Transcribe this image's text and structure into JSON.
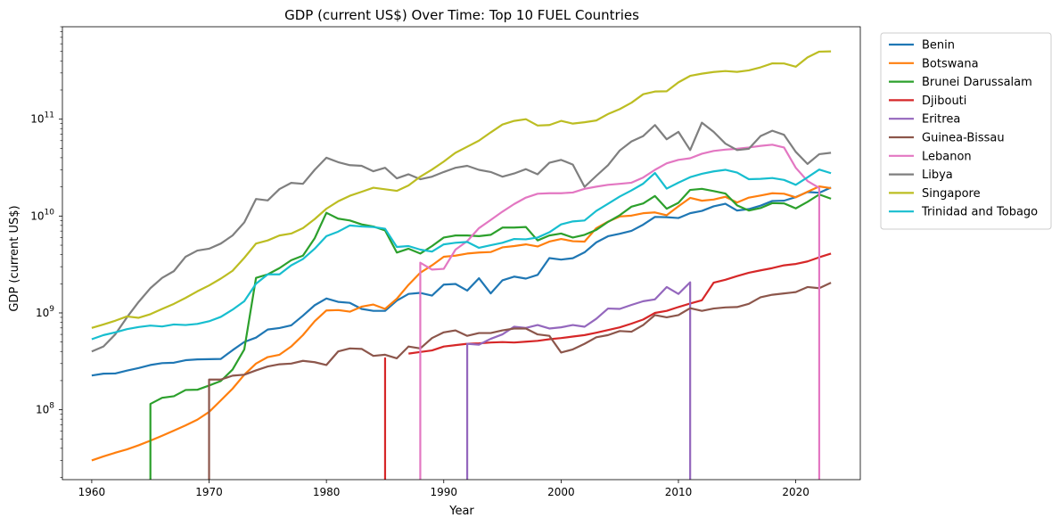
{
  "chart_data": {
    "type": "line",
    "title": "GDP (current US$) Over Time: Top 10 FUEL Countries",
    "xlabel": "Year",
    "ylabel": "GDP (current US$)",
    "yscale": "log",
    "xlim": [
      1957.5,
      2025.5
    ],
    "ylim": [
      19000000,
      900000000000
    ],
    "xticks": [
      1960,
      1970,
      1980,
      1990,
      2000,
      2010,
      2020
    ],
    "yticks": [
      {
        "value": 100000000,
        "base": "10",
        "exp": "8"
      },
      {
        "value": 1000000000,
        "base": "10",
        "exp": "9"
      },
      {
        "value": 10000000000,
        "base": "10",
        "exp": "10"
      },
      {
        "value": 100000000000,
        "base": "10",
        "exp": "11"
      }
    ],
    "grid": false,
    "legend_position": "outside-top-right",
    "series": [
      {
        "name": "Benin",
        "color": "#1f77b4",
        "x_start": 1960,
        "values": [
          226000000.0,
          236000000.0,
          237000000.0,
          254000000.0,
          270000000.0,
          290000000.0,
          303000000.0,
          306000000.0,
          325000000.0,
          331000000.0,
          333000000.0,
          335000000.0,
          412000000.0,
          501000000.0,
          556000000.0,
          674000000.0,
          698000000.0,
          744000000.0,
          937000000.0,
          1200000000.0,
          1410000000.0,
          1300000000.0,
          1270000000.0,
          1100000000.0,
          1050000000.0,
          1050000000.0,
          1340000000.0,
          1570000000.0,
          1610000000.0,
          1510000000.0,
          1960000000.0,
          1990000000.0,
          1700000000.0,
          2280000000.0,
          1590000000.0,
          2170000000.0,
          2370000000.0,
          2260000000.0,
          2470000000.0,
          3680000000.0,
          3550000000.0,
          3670000000.0,
          4220000000.0,
          5350000000.0,
          6190000000.0,
          6570000000.0,
          7030000000.0,
          8150000000.0,
          9790000000.0,
          9730000000.0,
          9540000000.0,
          10700000000.0,
          11300000000.0,
          12600000000.0,
          13400000000.0,
          11400000000.0,
          11800000000.0,
          12800000000.0,
          14300000000.0,
          14400000000.0,
          15700000000.0,
          17700000000.0,
          17400000000.0,
          19700000000.0
        ]
      },
      {
        "name": "Botswana",
        "color": "#ff7f0e",
        "x_start": 1960,
        "values": [
          30000000.0,
          33000000.0,
          36000000.0,
          39000000.0,
          43000000.0,
          48000000.0,
          54000000.0,
          61000000.0,
          69000000.0,
          79000000.0,
          95000000.0,
          125000000.0,
          165000000.0,
          230000000.0,
          300000000.0,
          350000000.0,
          370000000.0,
          450000000.0,
          590000000.0,
          820000000.0,
          1060000000.0,
          1070000000.0,
          1030000000.0,
          1160000000.0,
          1220000000.0,
          1100000000.0,
          1400000000.0,
          1950000000.0,
          2600000000.0,
          3100000000.0,
          3800000000.0,
          3900000000.0,
          4100000000.0,
          4200000000.0,
          4250000000.0,
          4750000000.0,
          4900000000.0,
          5100000000.0,
          4850000000.0,
          5450000000.0,
          5800000000.0,
          5500000000.0,
          5450000000.0,
          7500000000.0,
          8750000000.0,
          9900000000.0,
          10100000000.0,
          10700000000.0,
          10900000000.0,
          10200000000.0,
          12600000000.0,
          15400000000.0,
          14400000000.0,
          14800000000.0,
          15800000000.0,
          13800000000.0,
          15500000000.0,
          16300000000.0,
          17200000000.0,
          17000000000.0,
          15600000000.0,
          17800000000.0,
          20200000000.0,
          19400000000.0
        ]
      },
      {
        "name": "Brunei Darussalam",
        "color": "#2ca02c",
        "x_start": 1965,
        "drop_from": 1965,
        "values": [
          115000000.0,
          133000000.0,
          138000000.0,
          160000000.0,
          161000000.0,
          178000000.0,
          198000000.0,
          260000000.0,
          420000000.0,
          2300000000.0,
          2500000000.0,
          2900000000.0,
          3500000000.0,
          3900000000.0,
          5900000000.0,
          10800000000.0,
          9400000000.0,
          9000000000.0,
          8200000000.0,
          7800000000.0,
          7100000000.0,
          4200000000.0,
          4600000000.0,
          4100000000.0,
          4900000000.0,
          6000000000.0,
          6300000000.0,
          6300000000.0,
          6200000000.0,
          6400000000.0,
          7600000000.0,
          7600000000.0,
          7700000000.0,
          5600000000.0,
          6300000000.0,
          6600000000.0,
          6000000000.0,
          6400000000.0,
          7200000000.0,
          8700000000.0,
          10200000000.0,
          12500000000.0,
          13500000000.0,
          16100000000.0,
          11900000000.0,
          13700000000.0,
          18600000000.0,
          19100000000.0,
          18100000000.0,
          17100000000.0,
          12900000000.0,
          11400000000.0,
          12100000000.0,
          13600000000.0,
          13500000000.0,
          12000000000.0,
          14000000000.0,
          16700000000.0,
          15100000000.0
        ]
      },
      {
        "name": "Djibouti",
        "color": "#d62728",
        "x_start": 1985,
        "drop_from": 1985,
        "gap_after": 1985,
        "values": [
          340000000.0,
          null,
          380000000.0,
          395000000.0,
          410000000.0,
          450000000.0,
          465000000.0,
          480000000.0,
          485000000.0,
          495000000.0,
          500000000.0,
          495000000.0,
          505000000.0,
          515000000.0,
          535000000.0,
          550000000.0,
          570000000.0,
          590000000.0,
          625000000.0,
          665000000.0,
          710000000.0,
          775000000.0,
          855000000.0,
          1000000000.0,
          1050000000.0,
          1150000000.0,
          1250000000.0,
          1350000000.0,
          2050000000.0,
          2200000000.0,
          2400000000.0,
          2600000000.0,
          2750000000.0,
          2900000000.0,
          3100000000.0,
          3200000000.0,
          3400000000.0,
          3750000000.0,
          4100000000.0
        ]
      },
      {
        "name": "Eritrea",
        "color": "#9467bd",
        "x_start": 1992,
        "drop_from": 1992,
        "drop_after": true,
        "values": [
          480000000.0,
          470000000.0,
          540000000.0,
          600000000.0,
          720000000.0,
          700000000.0,
          750000000.0,
          690000000.0,
          710000000.0,
          750000000.0,
          720000000.0,
          870000000.0,
          1110000000.0,
          1100000000.0,
          1210000000.0,
          1320000000.0,
          1380000000.0,
          1850000000.0,
          1570000000.0,
          2070000000.0
        ]
      },
      {
        "name": "Guinea-Bissau",
        "color": "#8c564b",
        "x_start": 1970,
        "drop_from": 1970,
        "values": [
          205000000.0,
          205000000.0,
          225000000.0,
          230000000.0,
          255000000.0,
          280000000.0,
          295000000.0,
          300000000.0,
          320000000.0,
          310000000.0,
          290000000.0,
          400000000.0,
          430000000.0,
          425000000.0,
          360000000.0,
          370000000.0,
          340000000.0,
          450000000.0,
          430000000.0,
          550000000.0,
          630000000.0,
          660000000.0,
          580000000.0,
          620000000.0,
          620000000.0,
          660000000.0,
          690000000.0,
          690000000.0,
          600000000.0,
          580000000.0,
          390000000.0,
          420000000.0,
          480000000.0,
          560000000.0,
          590000000.0,
          650000000.0,
          640000000.0,
          750000000.0,
          950000000.0,
          900000000.0,
          950000000.0,
          1120000000.0,
          1050000000.0,
          1110000000.0,
          1140000000.0,
          1150000000.0,
          1240000000.0,
          1450000000.0,
          1540000000.0,
          1590000000.0,
          1640000000.0,
          1850000000.0,
          1800000000.0,
          2050000000.0
        ]
      },
      {
        "name": "Lebanon",
        "color": "#e377c2",
        "x_start": 1988,
        "drop_from": 1988,
        "drop_after": true,
        "values": [
          3300000000.0,
          2800000000.0,
          2850000000.0,
          4500000000.0,
          5500000000.0,
          7500000000.0,
          9100000000.0,
          11100000000.0,
          13300000000.0,
          15500000000.0,
          17000000000.0,
          17200000000.0,
          17200000000.0,
          17500000000.0,
          19100000000.0,
          20100000000.0,
          21000000000.0,
          21500000000.0,
          22100000000.0,
          25000000000.0,
          30000000000.0,
          35000000000.0,
          38000000000.0,
          39500000000.0,
          44000000000.0,
          47000000000.0,
          48500000000.0,
          49500000000.0,
          51000000000.0,
          53000000000.0,
          54500000000.0,
          51000000000.0,
          31500000000.0,
          23000000000.0,
          19500000000.0
        ]
      },
      {
        "name": "Libya",
        "color": "#7f7f7f",
        "x_start": 1960,
        "values": [
          400000000.0,
          450000000.0,
          600000000.0,
          900000000.0,
          1300000000.0,
          1800000000.0,
          2300000000.0,
          2700000000.0,
          3800000000.0,
          4400000000.0,
          4600000000.0,
          5200000000.0,
          6300000000.0,
          8600000000.0,
          15000000000.0,
          14500000000.0,
          19000000000.0,
          22000000000.0,
          21500000000.0,
          30000000000.0,
          40000000000.0,
          36000000000.0,
          33500000000.0,
          33000000000.0,
          29000000000.0,
          31500000000.0,
          24500000000.0,
          27000000000.0,
          24000000000.0,
          25500000000.0,
          28500000000.0,
          31500000000.0,
          33000000000.0,
          30000000000.0,
          28500000000.0,
          25500000000.0,
          27500000000.0,
          30500000000.0,
          27000000000.0,
          35500000000.0,
          38000000000.0,
          34000000000.0,
          20000000000.0,
          26000000000.0,
          33500000000.0,
          47500000000.0,
          59000000000.0,
          67000000000.0,
          87000000000.0,
          62000000000.0,
          74000000000.0,
          48000000000.0,
          92000000000.0,
          74000000000.0,
          56000000000.0,
          48000000000.0,
          49500000000.0,
          67000000000.0,
          76000000000.0,
          69000000000.0,
          46000000000.0,
          34500000000.0,
          43500000000.0,
          45000000000.0
        ]
      },
      {
        "name": "Singapore",
        "color": "#bcbd22",
        "x_start": 1960,
        "values": [
          700000000.0,
          760000000.0,
          830000000.0,
          920000000.0,
          890000000.0,
          970000000.0,
          1100000000.0,
          1240000000.0,
          1430000000.0,
          1670000000.0,
          1920000000.0,
          2260000000.0,
          2720000000.0,
          3700000000.0,
          5200000000.0,
          5600000000.0,
          6300000000.0,
          6600000000.0,
          7500000000.0,
          9300000000.0,
          11900000000.0,
          14200000000.0,
          16200000000.0,
          17800000000.0,
          19600000000.0,
          18900000000.0,
          18200000000.0,
          20700000000.0,
          25500000000.0,
          30200000000.0,
          36500000000.0,
          45000000000.0,
          52000000000.0,
          60000000000.0,
          73000000000.0,
          88000000000.0,
          96000000000.0,
          100000000000.0,
          86000000000.0,
          87000000000.0,
          96000000000.0,
          90000000000.0,
          93000000000.0,
          97000000000.0,
          113000000000.0,
          127000000000.0,
          148000000000.0,
          181000000000.0,
          193000000000.0,
          194000000000.0,
          240000000000.0,
          280000000000.0,
          295000000000.0,
          307000000000.0,
          314000000000.0,
          308000000000.0,
          319000000000.0,
          343000000000.0,
          377000000000.0,
          376000000000.0,
          348000000000.0,
          434000000000.0,
          498000000000.0,
          501000000000.0
        ]
      },
      {
        "name": "Trinidad and Tobago",
        "color": "#17becf",
        "x_start": 1960,
        "values": [
          535000000.0,
          590000000.0,
          630000000.0,
          680000000.0,
          715000000.0,
          740000000.0,
          725000000.0,
          760000000.0,
          750000000.0,
          770000000.0,
          820000000.0,
          910000000.0,
          1080000000.0,
          1320000000.0,
          2000000000.0,
          2500000000.0,
          2500000000.0,
          3100000000.0,
          3600000000.0,
          4600000000.0,
          6200000000.0,
          6900000000.0,
          8000000000.0,
          7800000000.0,
          7700000000.0,
          7400000000.0,
          4800000000.0,
          4900000000.0,
          4500000000.0,
          4300000000.0,
          5100000000.0,
          5300000000.0,
          5400000000.0,
          4700000000.0,
          5000000000.0,
          5300000000.0,
          5800000000.0,
          5750000000.0,
          6000000000.0,
          6800000000.0,
          8200000000.0,
          8800000000.0,
          9000000000.0,
          11300000000.0,
          13400000000.0,
          15900000000.0,
          18400000000.0,
          21600000000.0,
          27800000000.0,
          19200000000.0,
          22100000000.0,
          25200000000.0,
          27300000000.0,
          28900000000.0,
          30000000000.0,
          28100000000.0,
          24000000000.0,
          24200000000.0,
          24700000000.0,
          23600000000.0,
          21000000000.0,
          25100000000.0,
          30200000000.0,
          27700000000.0
        ]
      }
    ]
  }
}
